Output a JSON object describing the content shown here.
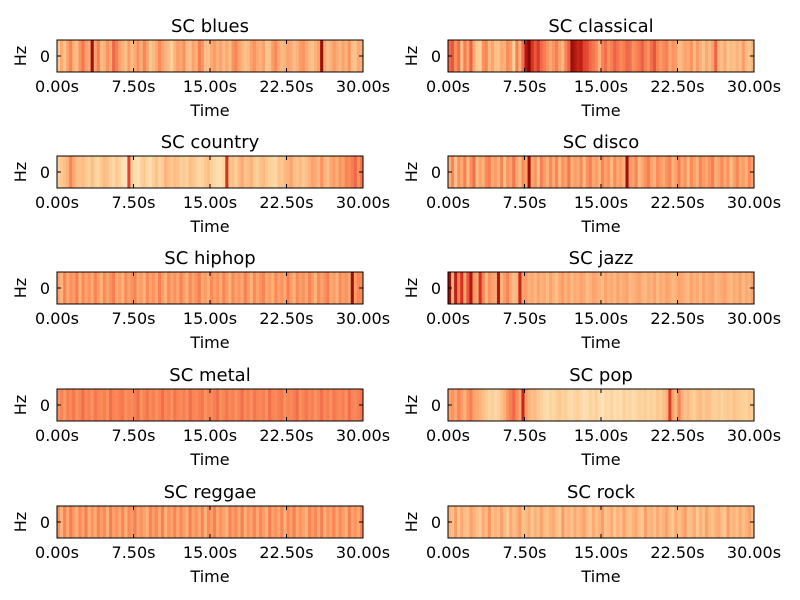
{
  "chart_data": [
    {
      "type": "heatmap",
      "title": "SC blues",
      "xlabel": "Time",
      "ylabel": "Hz",
      "xticks": [
        "0.00s",
        "7.50s",
        "15.00s",
        "22.50s",
        "30.00s"
      ],
      "yticks": [
        "0"
      ],
      "xlim": [
        0,
        30
      ],
      "colormap": "OrRd",
      "values": [
        0.35,
        0.48,
        0.38,
        0.5,
        0.6,
        0.45,
        0.4,
        0.55,
        0.65,
        0.52,
        0.48,
        0.95,
        0.5,
        0.62,
        0.42,
        0.45,
        0.55,
        0.48,
        0.7,
        0.62,
        0.5,
        0.45,
        0.38,
        0.52,
        0.4,
        0.48,
        0.55,
        0.45,
        0.6,
        0.5,
        0.35,
        0.42,
        0.48,
        0.58,
        0.5,
        0.45,
        0.4,
        0.3,
        0.45,
        0.52,
        0.48,
        0.55,
        0.42,
        0.38,
        0.5,
        0.45,
        0.62,
        0.55,
        0.4,
        0.38,
        0.48,
        0.52,
        0.45,
        0.5,
        0.42,
        0.48,
        0.4,
        0.55,
        0.6,
        0.5,
        0.45,
        0.38,
        0.42,
        0.5,
        0.55,
        0.48,
        0.45,
        0.5,
        0.35,
        0.4,
        0.52,
        0.58,
        0.48,
        0.42,
        0.45,
        0.5,
        0.48,
        0.4,
        0.45,
        0.52,
        0.55,
        0.48,
        0.42,
        0.38,
        0.45,
        0.5,
        0.95,
        0.48,
        0.4,
        0.45,
        0.52,
        0.48,
        0.42,
        0.5,
        0.45,
        0.55,
        0.4,
        0.38,
        0.48,
        0.45
      ]
    },
    {
      "type": "heatmap",
      "title": "SC classical",
      "xlabel": "Time",
      "ylabel": "Hz",
      "xticks": [
        "0.00s",
        "7.50s",
        "15.00s",
        "22.50s",
        "30.00s"
      ],
      "yticks": [
        "0"
      ],
      "xlim": [
        0,
        30
      ],
      "colormap": "OrRd",
      "values": [
        0.7,
        0.75,
        0.55,
        0.68,
        0.4,
        0.62,
        0.5,
        0.72,
        0.48,
        0.35,
        0.3,
        0.55,
        0.6,
        0.42,
        0.5,
        0.4,
        0.38,
        0.48,
        0.45,
        0.58,
        0.52,
        0.3,
        0.62,
        0.45,
        0.68,
        0.92,
        0.98,
        0.85,
        0.75,
        0.82,
        0.7,
        0.62,
        0.55,
        0.48,
        0.55,
        0.62,
        0.5,
        0.42,
        0.6,
        0.72,
        0.95,
        0.92,
        0.88,
        0.9,
        0.8,
        0.78,
        0.7,
        0.65,
        0.58,
        0.45,
        0.6,
        0.68,
        0.55,
        0.62,
        0.72,
        0.65,
        0.58,
        0.62,
        0.7,
        0.68,
        0.55,
        0.6,
        0.65,
        0.72,
        0.62,
        0.55,
        0.68,
        0.75,
        0.6,
        0.52,
        0.58,
        0.62,
        0.48,
        0.55,
        0.52,
        0.4,
        0.45,
        0.5,
        0.48,
        0.55,
        0.42,
        0.52,
        0.45,
        0.38,
        0.48,
        0.42,
        0.5,
        0.72,
        0.45,
        0.4,
        0.48,
        0.35,
        0.42,
        0.38,
        0.45,
        0.4,
        0.52,
        0.42,
        0.38,
        0.45
      ]
    },
    {
      "type": "heatmap",
      "title": "SC country",
      "xlabel": "Time",
      "ylabel": "Hz",
      "xticks": [
        "0.00s",
        "7.50s",
        "15.00s",
        "22.50s",
        "30.00s"
      ],
      "yticks": [
        "0"
      ],
      "xlim": [
        0,
        30
      ],
      "colormap": "OrRd",
      "values": [
        0.3,
        0.35,
        0.4,
        0.45,
        0.6,
        0.48,
        0.4,
        0.38,
        0.42,
        0.35,
        0.28,
        0.4,
        0.3,
        0.25,
        0.35,
        0.42,
        0.38,
        0.3,
        0.25,
        0.35,
        0.28,
        0.2,
        0.18,
        0.8,
        0.3,
        0.22,
        0.18,
        0.28,
        0.35,
        0.25,
        0.22,
        0.3,
        0.38,
        0.28,
        0.32,
        0.45,
        0.4,
        0.35,
        0.42,
        0.38,
        0.3,
        0.35,
        0.28,
        0.4,
        0.36,
        0.3,
        0.25,
        0.28,
        0.35,
        0.4,
        0.3,
        0.25,
        0.22,
        0.2,
        0.28,
        0.85,
        0.35,
        0.4,
        0.3,
        0.42,
        0.48,
        0.38,
        0.4,
        0.45,
        0.35,
        0.3,
        0.38,
        0.42,
        0.35,
        0.3,
        0.28,
        0.25,
        0.38,
        0.35,
        0.42,
        0.45,
        0.5,
        0.4,
        0.38,
        0.42,
        0.35,
        0.4,
        0.45,
        0.5,
        0.48,
        0.42,
        0.55,
        0.45,
        0.4,
        0.48,
        0.52,
        0.45,
        0.55,
        0.5,
        0.6,
        0.58,
        0.62,
        0.7,
        0.55,
        0.65
      ]
    },
    {
      "type": "heatmap",
      "title": "SC disco",
      "xlabel": "Time",
      "ylabel": "Hz",
      "xticks": [
        "0.00s",
        "7.50s",
        "15.00s",
        "22.50s",
        "30.00s"
      ],
      "yticks": [
        "0"
      ],
      "xlim": [
        0,
        30
      ],
      "colormap": "OrRd",
      "values": [
        0.45,
        0.6,
        0.38,
        0.55,
        0.48,
        0.62,
        0.42,
        0.55,
        0.68,
        0.4,
        0.5,
        0.45,
        0.58,
        0.62,
        0.48,
        0.52,
        0.45,
        0.6,
        0.38,
        0.55,
        0.5,
        0.65,
        0.48,
        0.42,
        0.58,
        0.5,
        0.95,
        0.48,
        0.55,
        0.4,
        0.62,
        0.52,
        0.45,
        0.58,
        0.48,
        0.6,
        0.42,
        0.55,
        0.5,
        0.65,
        0.45,
        0.52,
        0.48,
        0.58,
        0.4,
        0.55,
        0.62,
        0.48,
        0.52,
        0.45,
        0.6,
        0.5,
        0.55,
        0.42,
        0.58,
        0.48,
        0.52,
        0.45,
        0.95,
        0.55,
        0.5,
        0.6,
        0.42,
        0.48,
        0.55,
        0.62,
        0.5,
        0.45,
        0.58,
        0.52,
        0.48,
        0.55,
        0.6,
        0.45,
        0.5,
        0.62,
        0.48,
        0.55,
        0.42,
        0.58,
        0.5,
        0.45,
        0.6,
        0.52,
        0.48,
        0.55,
        0.62,
        0.45,
        0.5,
        0.58,
        0.48,
        0.55,
        0.42,
        0.5,
        0.6,
        0.48,
        0.52,
        0.45,
        0.58,
        0.5
      ]
    },
    {
      "type": "heatmap",
      "title": "SC hiphop",
      "xlabel": "Time",
      "ylabel": "Hz",
      "xticks": [
        "0.00s",
        "7.50s",
        "15.00s",
        "22.50s",
        "30.00s"
      ],
      "yticks": [
        "0"
      ],
      "xlim": [
        0,
        30
      ],
      "colormap": "OrRd",
      "values": [
        0.5,
        0.45,
        0.6,
        0.48,
        0.55,
        0.52,
        0.62,
        0.45,
        0.58,
        0.5,
        0.55,
        0.48,
        0.6,
        0.52,
        0.45,
        0.58,
        0.5,
        0.55,
        0.62,
        0.48,
        0.52,
        0.45,
        0.58,
        0.5,
        0.55,
        0.6,
        0.48,
        0.52,
        0.45,
        0.58,
        0.5,
        0.55,
        0.48,
        0.62,
        0.52,
        0.45,
        0.58,
        0.5,
        0.55,
        0.48,
        0.6,
        0.52,
        0.45,
        0.58,
        0.5,
        0.55,
        0.62,
        0.48,
        0.52,
        0.45,
        0.58,
        0.5,
        0.55,
        0.48,
        0.6,
        0.52,
        0.45,
        0.58,
        0.5,
        0.55,
        0.48,
        0.62,
        0.52,
        0.45,
        0.58,
        0.5,
        0.55,
        0.6,
        0.48,
        0.52,
        0.45,
        0.58,
        0.5,
        0.55,
        0.48,
        0.62,
        0.52,
        0.45,
        0.58,
        0.5,
        0.55,
        0.48,
        0.6,
        0.52,
        0.45,
        0.58,
        0.5,
        0.55,
        0.62,
        0.48,
        0.52,
        0.45,
        0.58,
        0.5,
        0.55,
        0.48,
        0.95,
        0.52,
        0.6,
        0.58
      ]
    },
    {
      "type": "heatmap",
      "title": "SC jazz",
      "xlabel": "Time",
      "ylabel": "Hz",
      "xticks": [
        "0.00s",
        "7.50s",
        "15.00s",
        "22.50s",
        "30.00s"
      ],
      "yticks": [
        "0"
      ],
      "xlim": [
        0,
        30
      ],
      "colormap": "OrRd",
      "values": [
        0.95,
        0.45,
        0.9,
        0.6,
        0.85,
        0.5,
        0.75,
        0.92,
        0.55,
        0.48,
        0.85,
        0.6,
        0.42,
        0.55,
        0.5,
        0.48,
        0.92,
        0.45,
        0.52,
        0.6,
        0.48,
        0.4,
        0.45,
        0.88,
        0.5,
        0.52,
        0.45,
        0.48,
        0.42,
        0.5,
        0.45,
        0.48,
        0.42,
        0.5,
        0.45,
        0.4,
        0.48,
        0.52,
        0.45,
        0.5,
        0.42,
        0.48,
        0.45,
        0.5,
        0.48,
        0.42,
        0.45,
        0.5,
        0.48,
        0.45,
        0.42,
        0.5,
        0.45,
        0.48,
        0.42,
        0.5,
        0.45,
        0.48,
        0.5,
        0.42,
        0.45,
        0.48,
        0.5,
        0.45,
        0.42,
        0.48,
        0.45,
        0.5,
        0.42,
        0.48,
        0.45,
        0.5,
        0.48,
        0.42,
        0.45,
        0.5,
        0.48,
        0.45,
        0.42,
        0.5,
        0.45,
        0.48,
        0.42,
        0.5,
        0.45,
        0.48,
        0.5,
        0.42,
        0.45,
        0.48,
        0.5,
        0.45,
        0.42,
        0.48,
        0.45,
        0.5,
        0.42,
        0.48,
        0.45,
        0.5
      ]
    },
    {
      "type": "heatmap",
      "title": "SC metal",
      "xlabel": "Time",
      "ylabel": "Hz",
      "xticks": [
        "0.00s",
        "7.50s",
        "15.00s",
        "22.50s",
        "30.00s"
      ],
      "yticks": [
        "0"
      ],
      "xlim": [
        0,
        30
      ],
      "colormap": "OrRd",
      "values": [
        0.55,
        0.6,
        0.52,
        0.62,
        0.58,
        0.65,
        0.55,
        0.6,
        0.68,
        0.58,
        0.62,
        0.55,
        0.65,
        0.6,
        0.58,
        0.62,
        0.55,
        0.68,
        0.6,
        0.58,
        0.62,
        0.65,
        0.55,
        0.6,
        0.58,
        0.62,
        0.68,
        0.55,
        0.6,
        0.65,
        0.58,
        0.62,
        0.55,
        0.6,
        0.68,
        0.58,
        0.62,
        0.55,
        0.65,
        0.6,
        0.58,
        0.62,
        0.55,
        0.68,
        0.6,
        0.58,
        0.62,
        0.65,
        0.55,
        0.6,
        0.58,
        0.62,
        0.68,
        0.55,
        0.6,
        0.65,
        0.58,
        0.62,
        0.55,
        0.6,
        0.68,
        0.58,
        0.62,
        0.55,
        0.65,
        0.6,
        0.58,
        0.62,
        0.55,
        0.68,
        0.6,
        0.58,
        0.62,
        0.65,
        0.55,
        0.6,
        0.58,
        0.62,
        0.68,
        0.55,
        0.6,
        0.65,
        0.58,
        0.62,
        0.55,
        0.6,
        0.68,
        0.58,
        0.62,
        0.55,
        0.65,
        0.6,
        0.58,
        0.62,
        0.55,
        0.68,
        0.6,
        0.58,
        0.62,
        0.65
      ]
    },
    {
      "type": "heatmap",
      "title": "SC pop",
      "xlabel": "Time",
      "ylabel": "Hz",
      "xticks": [
        "0.00s",
        "7.50s",
        "15.00s",
        "22.50s",
        "30.00s"
      ],
      "yticks": [
        "0"
      ],
      "xlim": [
        0,
        30
      ],
      "colormap": "OrRd",
      "values": [
        0.5,
        0.55,
        0.48,
        0.6,
        0.52,
        0.45,
        0.55,
        0.62,
        0.5,
        0.48,
        0.45,
        0.4,
        0.35,
        0.28,
        0.32,
        0.25,
        0.3,
        0.38,
        0.45,
        0.55,
        0.62,
        0.7,
        0.58,
        0.48,
        0.88,
        0.52,
        0.45,
        0.38,
        0.42,
        0.35,
        0.3,
        0.25,
        0.22,
        0.28,
        0.25,
        0.3,
        0.35,
        0.28,
        0.32,
        0.25,
        0.22,
        0.28,
        0.3,
        0.25,
        0.2,
        0.22,
        0.28,
        0.25,
        0.3,
        0.22,
        0.18,
        0.25,
        0.22,
        0.28,
        0.2,
        0.25,
        0.22,
        0.3,
        0.25,
        0.28,
        0.22,
        0.25,
        0.3,
        0.28,
        0.32,
        0.25,
        0.3,
        0.28,
        0.35,
        0.3,
        0.4,
        0.45,
        0.82,
        0.5,
        0.42,
        0.6,
        0.45,
        0.38,
        0.42,
        0.35,
        0.3,
        0.38,
        0.42,
        0.35,
        0.4,
        0.38,
        0.32,
        0.3,
        0.35,
        0.28,
        0.32,
        0.35,
        0.3,
        0.38,
        0.35,
        0.32,
        0.3,
        0.28,
        0.35,
        0.32
      ]
    },
    {
      "type": "heatmap",
      "title": "SC reggae",
      "xlabel": "Time",
      "ylabel": "Hz",
      "xticks": [
        "0.00s",
        "7.50s",
        "15.00s",
        "22.50s",
        "30.00s"
      ],
      "yticks": [
        "0"
      ],
      "xlim": [
        0,
        30
      ],
      "colormap": "OrRd",
      "values": [
        0.55,
        0.45,
        0.6,
        0.48,
        0.62,
        0.52,
        0.45,
        0.58,
        0.5,
        0.62,
        0.45,
        0.55,
        0.48,
        0.6,
        0.52,
        0.58,
        0.45,
        0.62,
        0.5,
        0.55,
        0.48,
        0.6,
        0.45,
        0.58,
        0.52,
        0.62,
        0.48,
        0.55,
        0.5,
        0.45,
        0.6,
        0.52,
        0.58,
        0.48,
        0.62,
        0.45,
        0.55,
        0.5,
        0.6,
        0.48,
        0.58,
        0.52,
        0.45,
        0.62,
        0.5,
        0.55,
        0.48,
        0.6,
        0.45,
        0.58,
        0.52,
        0.62,
        0.48,
        0.55,
        0.5,
        0.45,
        0.6,
        0.52,
        0.58,
        0.48,
        0.62,
        0.45,
        0.55,
        0.5,
        0.6,
        0.48,
        0.58,
        0.52,
        0.45,
        0.62,
        0.5,
        0.55,
        0.48,
        0.6,
        0.45,
        0.58,
        0.52,
        0.62,
        0.48,
        0.55,
        0.5,
        0.45,
        0.6,
        0.52,
        0.58,
        0.48,
        0.62,
        0.45,
        0.55,
        0.5,
        0.6,
        0.48,
        0.58,
        0.52,
        0.45,
        0.62,
        0.5,
        0.55,
        0.48,
        0.6
      ]
    },
    {
      "type": "heatmap",
      "title": "SC rock",
      "xlabel": "Time",
      "ylabel": "Hz",
      "xticks": [
        "0.00s",
        "7.50s",
        "15.00s",
        "22.50s",
        "30.00s"
      ],
      "yticks": [
        "0"
      ],
      "xlim": [
        0,
        30
      ],
      "colormap": "OrRd",
      "values": [
        0.45,
        0.4,
        0.52,
        0.35,
        0.48,
        0.42,
        0.38,
        0.5,
        0.45,
        0.4,
        0.35,
        0.48,
        0.42,
        0.55,
        0.38,
        0.45,
        0.4,
        0.5,
        0.42,
        0.35,
        0.48,
        0.4,
        0.45,
        0.52,
        0.38,
        0.42,
        0.48,
        0.35,
        0.45,
        0.4,
        0.5,
        0.42,
        0.38,
        0.45,
        0.48,
        0.4,
        0.35,
        0.52,
        0.42,
        0.45,
        0.38,
        0.48,
        0.4,
        0.45,
        0.5,
        0.42,
        0.35,
        0.48,
        0.4,
        0.45,
        0.52,
        0.38,
        0.42,
        0.48,
        0.35,
        0.45,
        0.4,
        0.5,
        0.42,
        0.38,
        0.45,
        0.48,
        0.4,
        0.35,
        0.52,
        0.42,
        0.45,
        0.38,
        0.48,
        0.4,
        0.45,
        0.5,
        0.42,
        0.35,
        0.48,
        0.4,
        0.45,
        0.52,
        0.38,
        0.42,
        0.48,
        0.35,
        0.45,
        0.4,
        0.5,
        0.42,
        0.38,
        0.45,
        0.48,
        0.4,
        0.35,
        0.52,
        0.42,
        0.45,
        0.38,
        0.48,
        0.4,
        0.45,
        0.5,
        0.42
      ]
    }
  ]
}
